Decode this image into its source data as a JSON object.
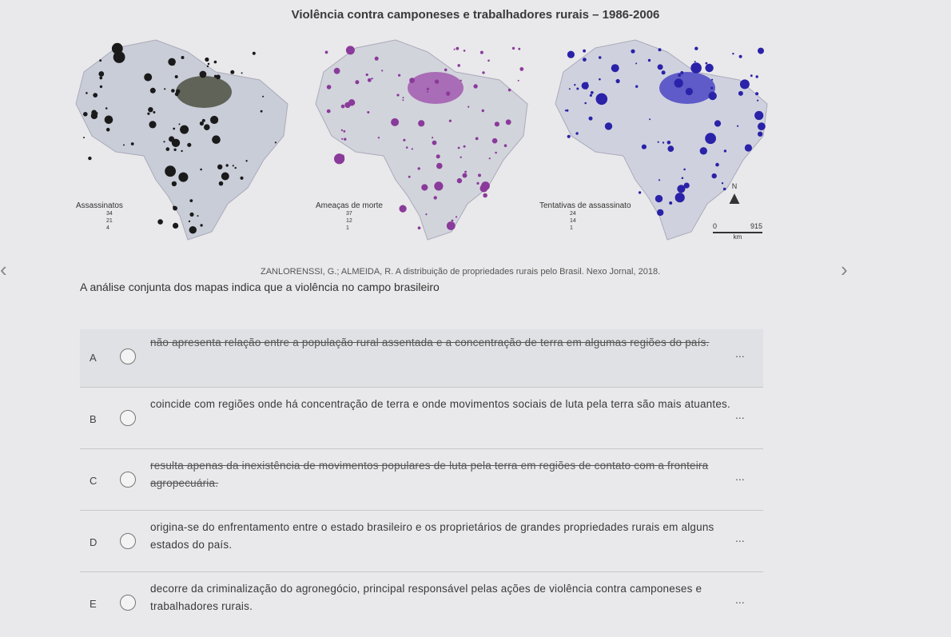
{
  "title": "Violência contra camponeses e trabalhadores rurais – 1986-2006",
  "maps": [
    {
      "legend_title": "Assassinatos",
      "legend_values": [
        "34",
        "21",
        "4"
      ],
      "dot_color": "#1a1a1a",
      "area_color": "#3b3f2e"
    },
    {
      "legend_title": "Ameaças de morte",
      "legend_values": [
        "37",
        "12",
        "1"
      ],
      "dot_color": "#8a3a9a",
      "area_color": "#9b4aaa"
    },
    {
      "legend_title": "Tentativas de assassinato",
      "legend_values": [
        "24",
        "14",
        "1"
      ],
      "dot_color": "#2a22a8",
      "area_color": "#3a33c0"
    }
  ],
  "north_label": "N",
  "scale": {
    "start": "0",
    "end": "915",
    "unit": "km"
  },
  "source": "ZANLORENSSI, G.; ALMEIDA, R. A distribuição de propriedades rurais pelo Brasil. Nexo Jornal, 2018.",
  "nav": {
    "prev": "‹",
    "next": "›"
  },
  "question": "A análise conjunta dos mapas indica que a violência no campo brasileiro",
  "options": [
    {
      "letter": "A",
      "text": "não apresenta relação entre a população rural assentada e a concentração de terra em algumas regiões do país.",
      "more": "..."
    },
    {
      "letter": "B",
      "text": "coincide com regiões onde há concentração de terra e onde movimentos sociais de luta pela terra são mais atuantes.",
      "more": "..."
    },
    {
      "letter": "C",
      "text": "resulta apenas da inexistência de movimentos populares de luta pela terra em regiões de contato com a fronteira agropecuária.",
      "more": "..."
    },
    {
      "letter": "D",
      "text": "origina-se do enfrentamento entre o estado brasileiro e os proprietários de grandes propriedades rurais em alguns estados do país.",
      "more": "..."
    },
    {
      "letter": "E",
      "text": "decorre da criminalização do agronegócio, principal responsável pelas ações de violência contra camponeses e trabalhadores rurais.",
      "more": "..."
    }
  ]
}
